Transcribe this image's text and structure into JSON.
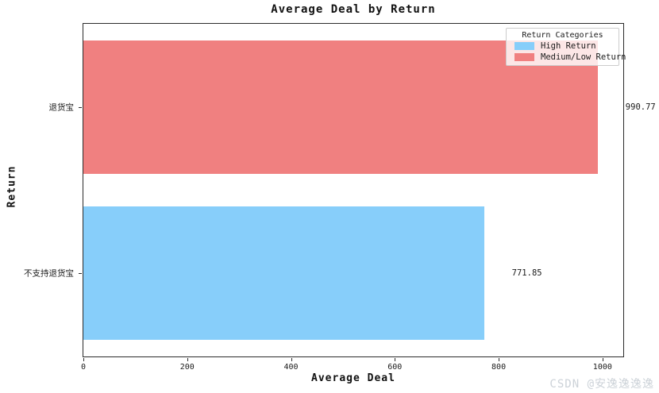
{
  "chart_data": {
    "type": "bar",
    "orientation": "horizontal",
    "title": "Average Deal by Return",
    "xlabel": "Average Deal",
    "ylabel": "Return",
    "categories": [
      "退货宝",
      "不支持退货宝"
    ],
    "values": [
      990.77,
      771.85
    ],
    "value_labels": [
      "990.77",
      "771.85"
    ],
    "bar_colors": [
      "#F08080",
      "#87CEFA"
    ],
    "bar_height_fraction": 0.8,
    "xlim": [
      0,
      1040
    ],
    "xticks": [
      0,
      200,
      400,
      600,
      800,
      1000
    ],
    "grid": false,
    "legend": {
      "title": "Return Categories",
      "position": "upper right",
      "entries": [
        {
          "label": "High Return",
          "color": "#87CEFA"
        },
        {
          "label": "Medium/Low Return",
          "color": "#F08080"
        }
      ]
    }
  },
  "watermark": "CSDN @安逸逸逸逸"
}
